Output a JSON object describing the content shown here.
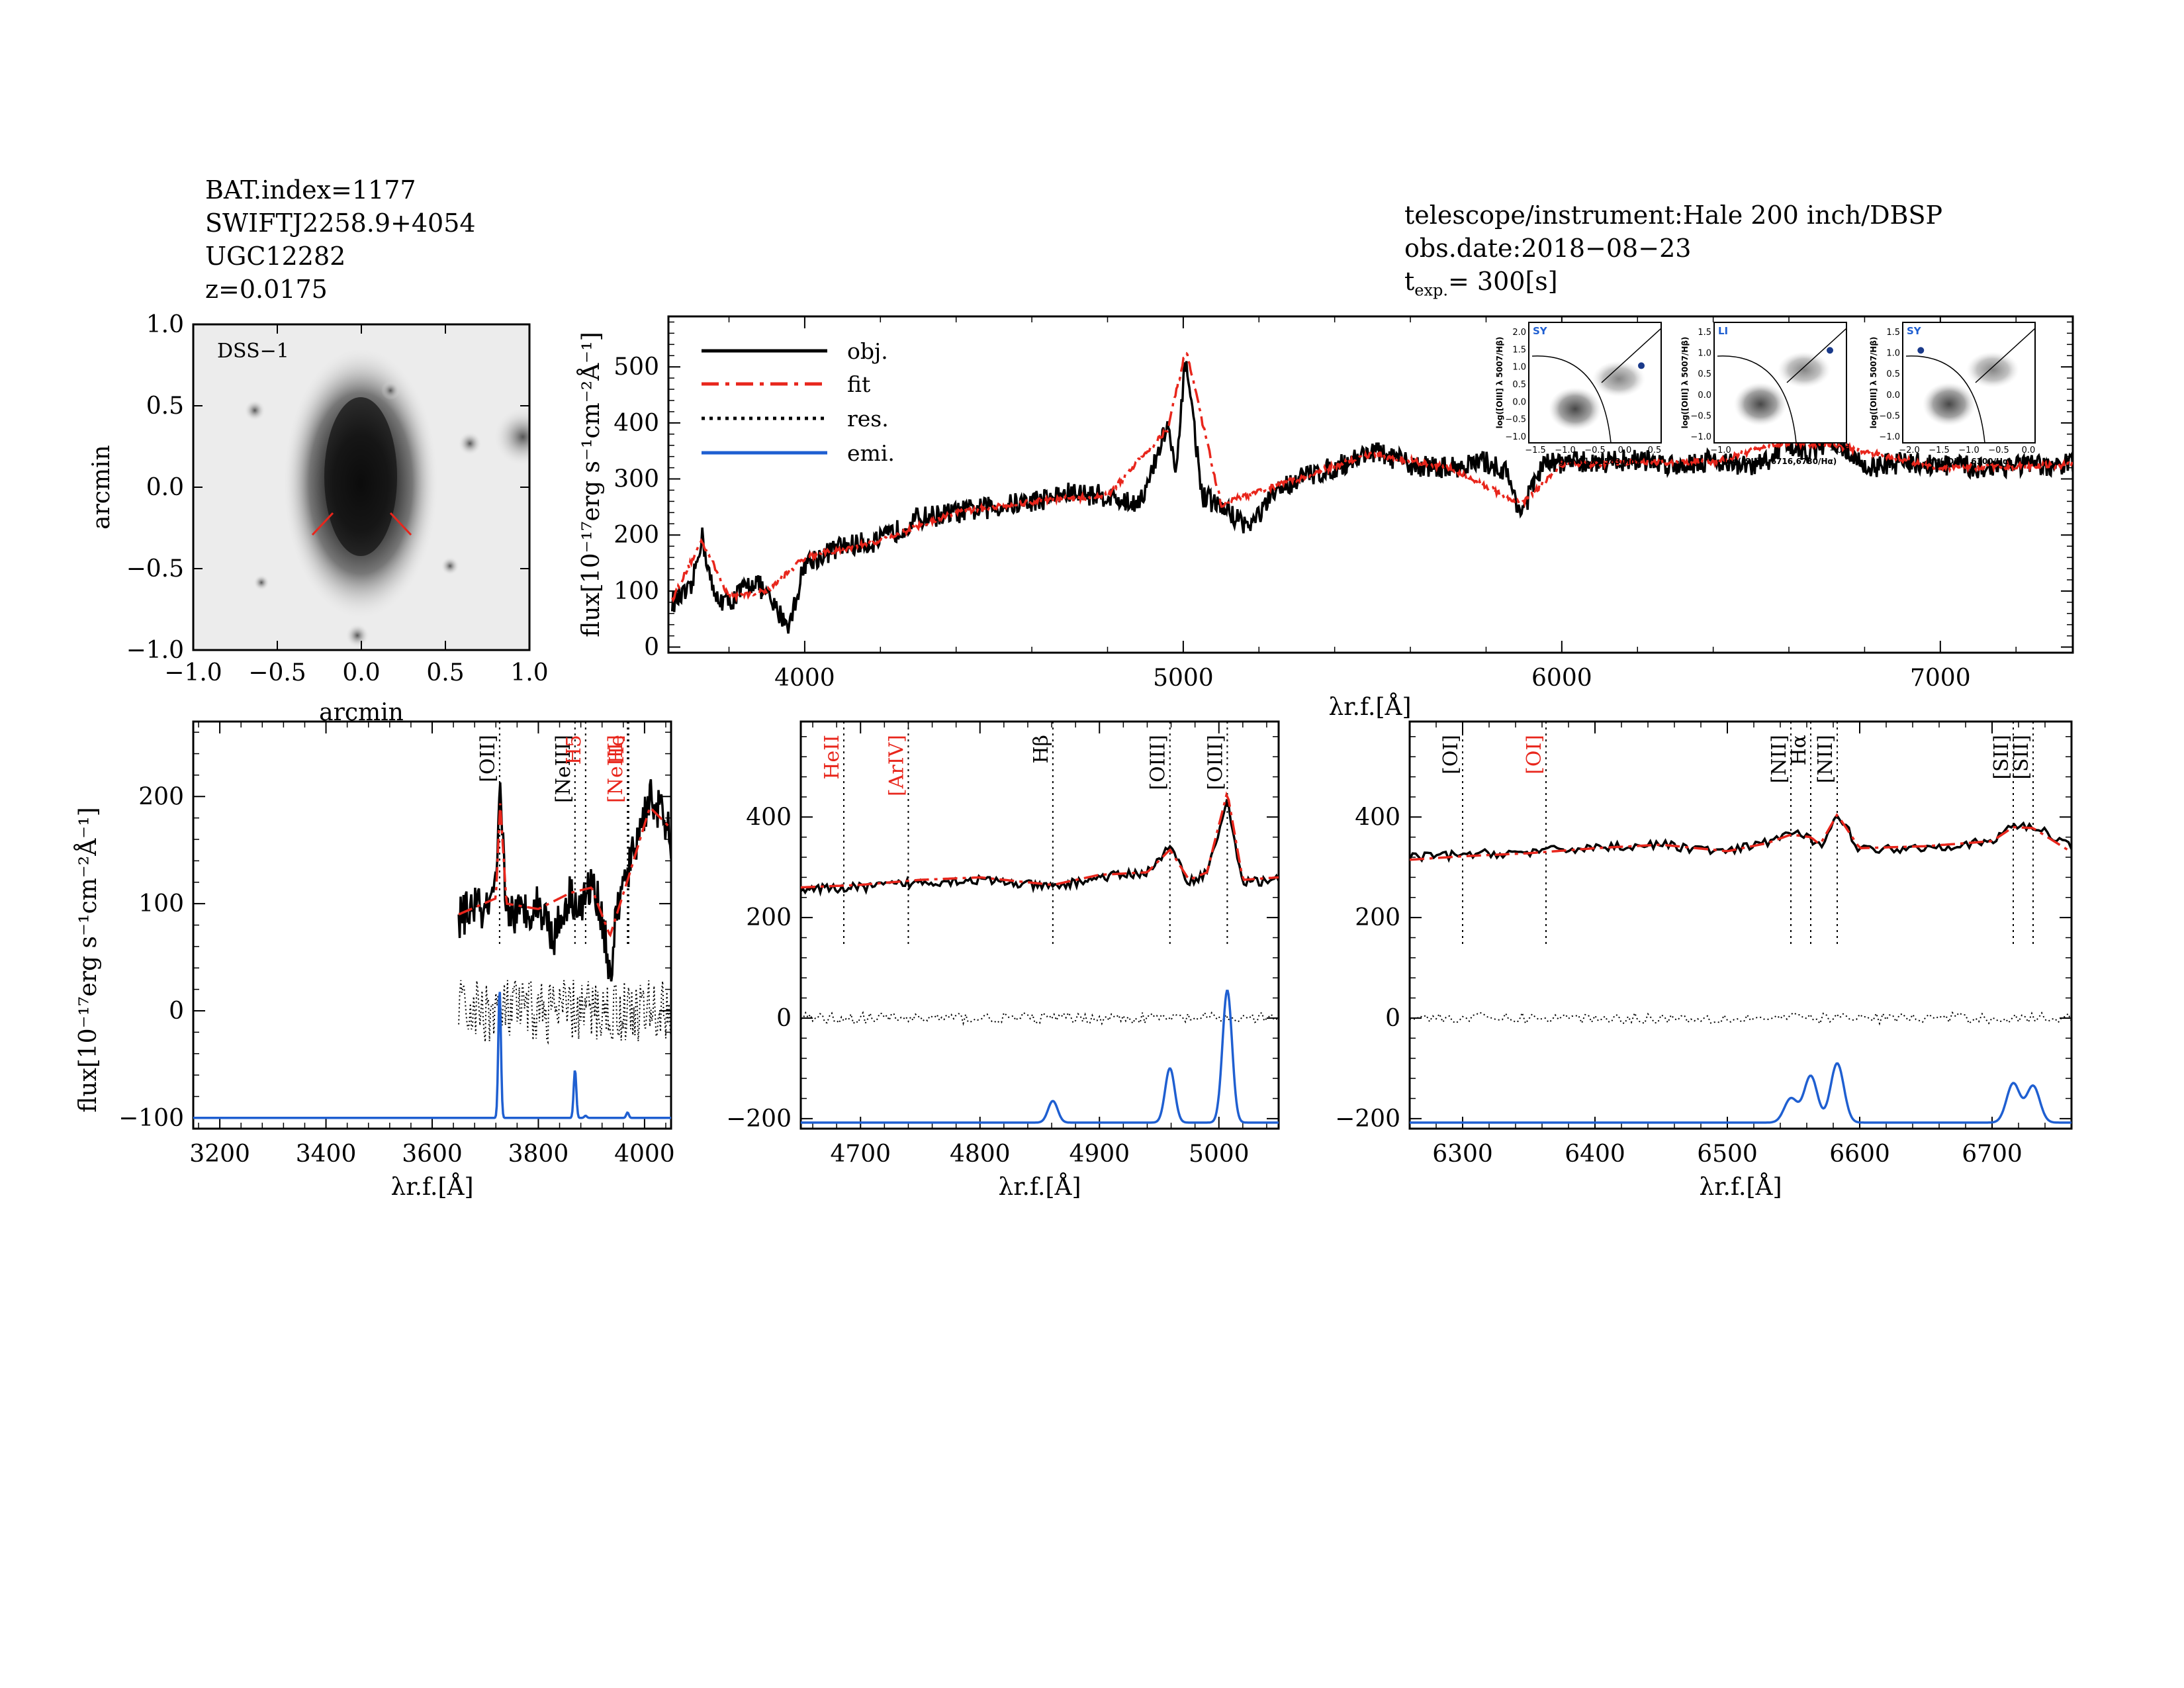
{
  "header_left": {
    "line1": "BAT.index=1177",
    "line2": "SWIFTJ2258.9+4054",
    "line3": "UGC12282",
    "line4": "z=0.0175"
  },
  "header_right": {
    "line1": "telescope/instrument:Hale 200 inch/DBSP",
    "line2": "obs.date:2018−08−23",
    "line3_main": "t",
    "line3_sub": "exp.",
    "line3_rest": "= 300[s]"
  },
  "colors": {
    "obj": "#000000",
    "fit": "#e8261c",
    "res": "#000000",
    "emi": "#1f5fd1",
    "red_label": "#e8261c",
    "dot_blue": "#1a3a8a"
  },
  "image_panel": {
    "label": "DSS−1",
    "xlabel": "arcmin",
    "ylabel": "arcmin",
    "xticks": [
      "−1.0",
      "−0.5",
      "0.0",
      "0.5",
      "1.0"
    ],
    "yticks": [
      "1.0",
      "0.5",
      "0.0",
      "−0.5",
      "−1.0"
    ]
  },
  "legend": {
    "obj": "obj.",
    "fit": "fit",
    "res": "res.",
    "emi": "emi."
  },
  "ylabel_main": "flux[10⁻¹⁷erg s⁻¹cm⁻²Å⁻¹]",
  "xlabel_rf": "λr.f.[Å]",
  "bpt": [
    {
      "tag": "SY",
      "ylabel": "log([OIII] λ 5007/Hβ)",
      "xlabel": "log([NII] λ 6583/Hα)",
      "yticks": [
        "2.0",
        "1.5",
        "1.0",
        "0.5",
        "0.0",
        "−0.5",
        "−1.0"
      ],
      "xticks": [
        "−1.5",
        "−1.0",
        "−0.5",
        "0.0",
        "0.5"
      ],
      "xlim": [
        -1.5,
        0.5
      ],
      "ylim": [
        -1.2,
        2.0
      ],
      "point": [
        0.2,
        0.85
      ]
    },
    {
      "tag": "LI",
      "ylabel": "log([OIII] λ 5007/Hβ)",
      "xlabel": "log([SII] λ 6716,6730/Hα)",
      "yticks": [
        "1.5",
        "1.0",
        "0.5",
        "0.0",
        "−0.5",
        "−1.0"
      ],
      "xticks": [
        "−1.0",
        "−0.5"
      ],
      "xlim": [
        -1.2,
        0.8
      ],
      "ylim": [
        -1.2,
        1.6
      ],
      "point": [
        0.55,
        0.95
      ]
    },
    {
      "tag": "SY",
      "ylabel": "log([OIII] λ 5007/Hβ)",
      "xlabel": "log([OI] λ 6300/Hα)",
      "yticks": [
        "1.5",
        "1.0",
        "0.5",
        "0.0",
        "−0.5",
        "−1.0"
      ],
      "xticks": [
        "−2.0",
        "−1.5",
        "−1.0",
        "−0.5",
        "0.0"
      ],
      "xlim": [
        -2.2,
        0.0
      ],
      "ylim": [
        -1.2,
        1.6
      ],
      "point": [
        -1.9,
        0.95
      ]
    }
  ],
  "chart_data": [
    {
      "type": "line",
      "title": "",
      "xlabel": "λr.f.[Å]",
      "ylabel": "flux[10⁻¹⁷erg s⁻¹cm⁻²Å⁻¹]",
      "xlim": [
        3640,
        7350
      ],
      "ylim": [
        -10,
        590
      ],
      "xticks": [
        4000,
        5000,
        6000,
        7000
      ],
      "yticks": [
        0,
        100,
        200,
        300,
        400,
        500
      ],
      "series": [
        {
          "name": "obj.",
          "x": [
            3650,
            3700,
            3728,
            3760,
            3800,
            3870,
            3920,
            3960,
            4000,
            4100,
            4200,
            4300,
            4400,
            4500,
            4600,
            4700,
            4800,
            4861,
            4900,
            4959,
            4980,
            5007,
            5050,
            5100,
            5175,
            5250,
            5300,
            5400,
            5500,
            5600,
            5700,
            5800,
            5850,
            5893,
            5950,
            6000,
            6100,
            6200,
            6300,
            6400,
            6500,
            6563,
            6583,
            6650,
            6720,
            6800,
            6900,
            7000,
            7100,
            7200,
            7300,
            7350
          ],
          "values": [
            80,
            100,
            200,
            90,
            80,
            120,
            70,
            40,
            150,
            180,
            190,
            230,
            240,
            250,
            260,
            275,
            270,
            255,
            275,
            400,
            300,
            520,
            270,
            250,
            215,
            280,
            300,
            320,
            350,
            325,
            320,
            330,
            315,
            240,
            325,
            330,
            330,
            335,
            325,
            335,
            320,
            340,
            370,
            345,
            370,
            320,
            330,
            325,
            320,
            325,
            320,
            330
          ]
        },
        {
          "name": "fit",
          "x": [
            3650,
            3728,
            3800,
            3900,
            4000,
            4200,
            4400,
            4600,
            4800,
            4959,
            5007,
            5100,
            5300,
            5500,
            5700,
            5893,
            6000,
            6200,
            6400,
            6583,
            6720,
            7000,
            7350
          ],
          "values": [
            85,
            190,
            90,
            100,
            160,
            190,
            240,
            260,
            270,
            390,
            530,
            255,
            300,
            345,
            320,
            255,
            325,
            330,
            330,
            365,
            360,
            320,
            325
          ]
        },
        {
          "name": "emi.",
          "values": []
        }
      ]
    },
    {
      "type": "line",
      "xlabel": "λr.f.[Å]",
      "ylabel": "flux[10⁻¹⁷erg s⁻¹cm⁻²Å⁻¹]",
      "xlim": [
        3150,
        4050
      ],
      "ylim": [
        -110,
        270
      ],
      "xticks": [
        3200,
        3400,
        3600,
        3800,
        4000
      ],
      "yticks": [
        -100,
        0,
        100,
        200
      ],
      "lines": [
        {
          "label": "[OII]",
          "x": 3727,
          "color": "black"
        },
        {
          "label": "[NeIII]",
          "x": 3869,
          "color": "black"
        },
        {
          "label": "H5",
          "x": 3889,
          "color": "red"
        },
        {
          "label": "[NeIII]",
          "x": 3968,
          "color": "red"
        },
        {
          "label": "He",
          "x": 3970,
          "color": "red"
        }
      ],
      "series": [
        {
          "name": "obj.",
          "x": [
            3650,
            3680,
            3700,
            3720,
            3728,
            3740,
            3760,
            3800,
            3830,
            3860,
            3880,
            3900,
            3920,
            3935,
            3950,
            3970,
            3990,
            4010,
            4030,
            4050
          ],
          "values": [
            85,
            100,
            90,
            110,
            200,
            95,
            90,
            100,
            70,
            110,
            95,
            120,
            90,
            30,
            100,
            130,
            170,
            200,
            185,
            160
          ]
        },
        {
          "name": "fit",
          "x": [
            3650,
            3720,
            3728,
            3740,
            3800,
            3860,
            3900,
            3935,
            3970,
            4010,
            4050
          ],
          "values": [
            90,
            105,
            195,
            100,
            95,
            110,
            115,
            70,
            125,
            190,
            170
          ]
        },
        {
          "name": "res.",
          "values": [
            0
          ]
        },
        {
          "name": "emi.",
          "x": [
            3727,
            3869,
            3889,
            3968
          ],
          "values": [
            20,
            -55,
            -98,
            -95
          ]
        }
      ]
    },
    {
      "type": "line",
      "xlabel": "λr.f.[Å]",
      "ylabel": "",
      "xlim": [
        4650,
        5050
      ],
      "ylim": [
        -220,
        590
      ],
      "xticks": [
        4700,
        4800,
        4900,
        5000
      ],
      "yticks": [
        -200,
        0,
        200,
        400
      ],
      "lines": [
        {
          "label": "HeII",
          "x": 4686,
          "color": "red"
        },
        {
          "label": "[ArIV]",
          "x": 4740,
          "color": "red"
        },
        {
          "label": "Hβ",
          "x": 4861,
          "color": "black"
        },
        {
          "label": "[OIII]",
          "x": 4959,
          "color": "black"
        },
        {
          "label": "[OIII]",
          "x": 5007,
          "color": "black"
        }
      ],
      "series": [
        {
          "name": "obj.",
          "x": [
            4650,
            4700,
            4750,
            4800,
            4861,
            4900,
            4940,
            4959,
            4975,
            4990,
            5007,
            5020,
            5050
          ],
          "values": [
            255,
            260,
            270,
            275,
            260,
            280,
            290,
            340,
            270,
            290,
            430,
            270,
            275
          ]
        },
        {
          "name": "fit",
          "x": [
            4650,
            4700,
            4750,
            4800,
            4861,
            4900,
            4940,
            4959,
            4975,
            4990,
            5007,
            5020,
            5050
          ],
          "values": [
            260,
            265,
            275,
            280,
            265,
            285,
            290,
            335,
            275,
            290,
            450,
            275,
            280
          ]
        },
        {
          "name": "res.",
          "values": [
            0
          ]
        },
        {
          "name": "emi.",
          "x": [
            4861,
            4959,
            5007
          ],
          "values": [
            -165,
            -100,
            55
          ]
        }
      ]
    },
    {
      "type": "line",
      "xlabel": "λr.f.[Å]",
      "ylabel": "",
      "xlim": [
        6260,
        6760
      ],
      "ylim": [
        -220,
        590
      ],
      "xticks": [
        6300,
        6400,
        6500,
        6600,
        6700
      ],
      "yticks": [
        -200,
        0,
        200,
        400
      ],
      "lines": [
        {
          "label": "[OI]",
          "x": 6300,
          "color": "black"
        },
        {
          "label": "[OI]",
          "x": 6363,
          "color": "red"
        },
        {
          "label": "[NII]",
          "x": 6548,
          "color": "black"
        },
        {
          "label": "Hα",
          "x": 6563,
          "color": "black"
        },
        {
          "label": "[NII]",
          "x": 6583,
          "color": "black"
        },
        {
          "label": "[SII]",
          "x": 6716,
          "color": "black"
        },
        {
          "label": "[SII]",
          "x": 6731,
          "color": "black"
        }
      ],
      "series": [
        {
          "name": "obj.",
          "x": [
            6260,
            6300,
            6350,
            6400,
            6450,
            6500,
            6530,
            6548,
            6563,
            6570,
            6583,
            6600,
            6650,
            6700,
            6716,
            6731,
            6760
          ],
          "values": [
            320,
            325,
            330,
            340,
            345,
            330,
            350,
            370,
            355,
            340,
            410,
            335,
            340,
            350,
            385,
            380,
            345
          ]
        },
        {
          "name": "fit",
          "x": [
            6260,
            6300,
            6350,
            6400,
            6450,
            6500,
            6530,
            6548,
            6563,
            6570,
            6583,
            6600,
            6650,
            6700,
            6716,
            6731,
            6760
          ],
          "values": [
            315,
            322,
            328,
            338,
            345,
            332,
            348,
            365,
            360,
            345,
            405,
            338,
            342,
            352,
            380,
            378,
            330
          ]
        },
        {
          "name": "res.",
          "values": [
            0
          ]
        },
        {
          "name": "emi.",
          "x": [
            6548,
            6563,
            6583,
            6716,
            6731
          ],
          "values": [
            -160,
            -115,
            -90,
            -130,
            -135
          ]
        }
      ]
    }
  ]
}
